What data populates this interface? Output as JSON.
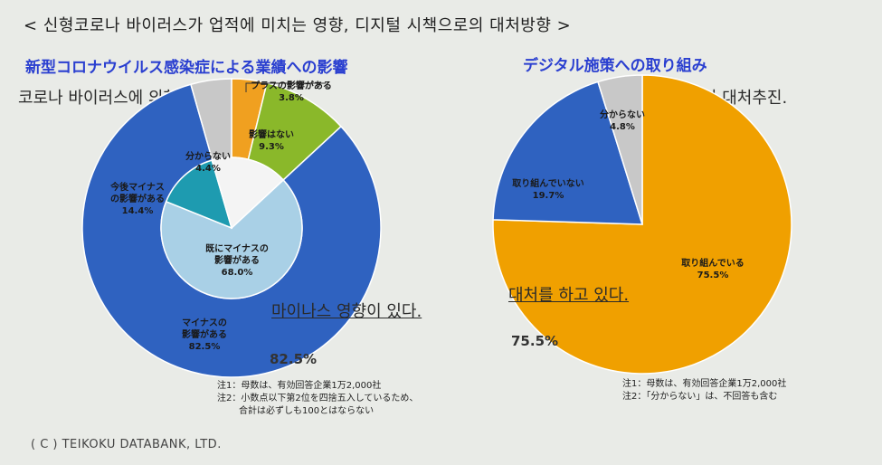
{
  "header": {
    "title": "< 신형코로나 바이러스가 업적에 미치는 영향, 디지털 시책으로의 대처방향 >"
  },
  "left": {
    "title_jp": "新型コロナウイルス感染症による業績への影響",
    "note_ko_top": "코로나 바이러스에 의한 실적 영향도",
    "note_ko_mid": "마이나스 영향이 있다.",
    "note_ko_pct": "82.5%",
    "footnote_1": "注1：母数は、有効回答企業1万2,000社",
    "footnote_2": "注2：小数点以下第2位を四捨五入しているため、",
    "footnote_3": "合計は必ずしも100とはならない"
  },
  "right": {
    "title_jp": "デジタル施策への取り組み",
    "note_ko_top": "디지털정책으로의 대처추진.",
    "note_ko_mid": "대처를 하고 있다.",
    "note_ko_pct": "75.5%",
    "footnote_1": "注1：母数は、有効回答企業1万2,000社",
    "footnote_2": "注2：「分からない」は、不回答も含む"
  },
  "copyright": "( C ) TEIKOKU DATABANK, LTD.",
  "chart_data": [
    {
      "type": "pie",
      "variant": "donut",
      "slices": [
        {
          "label": "プラスの影響がある",
          "value": 3.8,
          "color": "#f0a020"
        },
        {
          "label": "影響はない",
          "value": 9.3,
          "color": "#8ab82a"
        },
        {
          "label": "マイナスの影響がある",
          "value": 82.5,
          "color": "#2f62c0"
        },
        {
          "label": "分からない",
          "value": 4.4,
          "color": "#c8c8c8"
        }
      ],
      "inner_slices": [
        {
          "label": "既にマイナスの影響がある",
          "value": 68.0,
          "color": "#a9d0e6"
        },
        {
          "label": "今後マイナスの影響がある",
          "value": 14.4,
          "color": "#1e9bb0"
        }
      ],
      "display": {
        "plus": "3.8%",
        "none": "9.3%",
        "minus": "82.5%",
        "unknown": "4.4%",
        "already": "68.0%",
        "future": "14.4%"
      },
      "labels": {
        "plus": "プラスの影響がある",
        "none": [
          "影響はない"
        ],
        "minus": [
          "マイナスの",
          "影響がある"
        ],
        "unknown": [
          "分からない"
        ],
        "already": [
          "既にマイナスの",
          "影響がある"
        ],
        "future": [
          "今後マイナス",
          "の影響がある"
        ]
      }
    },
    {
      "type": "pie",
      "slices": [
        {
          "label": "取り組んでいる",
          "value": 75.5,
          "color": "#f0a000"
        },
        {
          "label": "取り組んでいない",
          "value": 19.7,
          "color": "#2f62c0"
        },
        {
          "label": "分からない",
          "value": 4.8,
          "color": "#c8c8c8"
        }
      ],
      "display": {
        "doing": "75.5%",
        "not_doing": "19.7%",
        "unknown": "4.8%"
      },
      "labels": {
        "doing": [
          "取り組んでいる"
        ],
        "not_doing": [
          "取り組んでいない"
        ],
        "unknown": [
          "分からない"
        ]
      }
    }
  ]
}
